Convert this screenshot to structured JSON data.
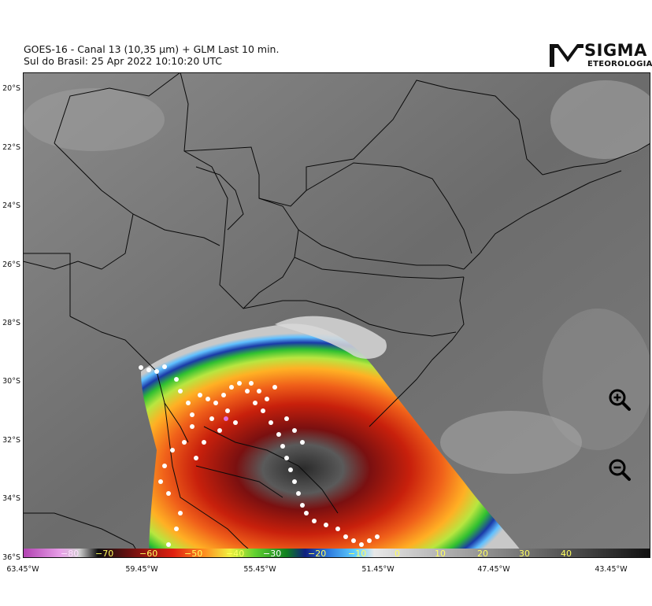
{
  "title": {
    "line1": "GOES-16 - Canal 13 (10,35 µm) + GLM Last 10 min.",
    "line2": "Sul do Brasil:  25 Apr 2022 10:10:20 UTC"
  },
  "logo": {
    "text_main": "SIGMA",
    "text_sub": "ETEOROLOGIA"
  },
  "map": {
    "lat_labels": [
      "20°S",
      "22°S",
      "24°S",
      "26°S",
      "28°S",
      "30°S",
      "32°S",
      "34°S",
      "36°S"
    ],
    "lon_labels": [
      "63.45°W",
      "59.45°W",
      "55.45°W",
      "51.45°W",
      "47.45°W",
      "43.45°W"
    ],
    "colorbar_labels": [
      "−80",
      "−70",
      "−60",
      "−50",
      "−40",
      "−30",
      "−20",
      "−10",
      "0",
      "10",
      "20",
      "30",
      "40"
    ]
  },
  "controls": {
    "zoom_in": "zoom-in-icon",
    "zoom_out": "zoom-out-icon"
  },
  "colors": {
    "land_gray": "#6f6f6f",
    "border": "#0a0a0a",
    "lightning": "#ffffff"
  }
}
